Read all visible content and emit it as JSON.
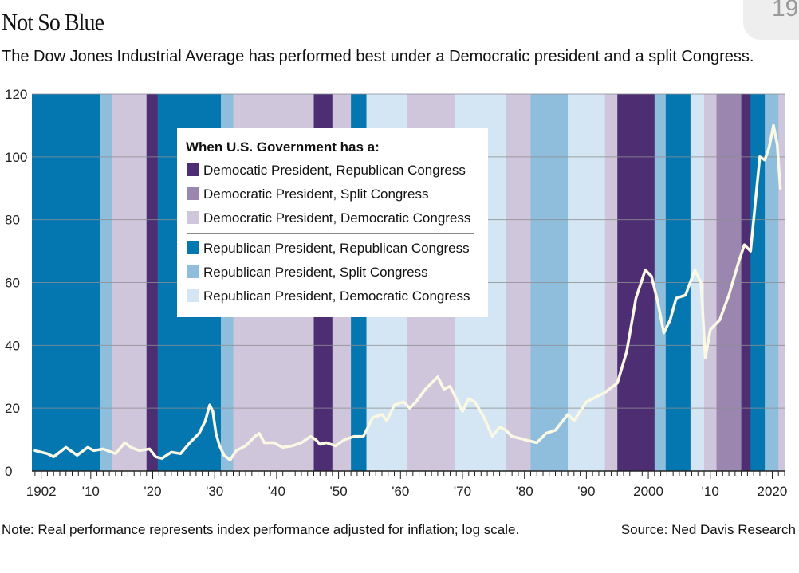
{
  "badge_text": "19",
  "chart_data": {
    "type": "line",
    "title": "Not So Blue",
    "subtitle": "The Dow Jones Industrial Average has performed best under a Democratic president and a split Congress.",
    "note": "Note: Real performance represents index performance adjusted for inflation; log scale.",
    "source": "Source: Ned Davis Research",
    "xlim": [
      1900.5,
      2022
    ],
    "ylim": [
      0,
      120
    ],
    "y_ticks": [
      0,
      20,
      40,
      60,
      80,
      100,
      120
    ],
    "x_ticks": [
      {
        "year": 1902,
        "label": "1902"
      },
      {
        "year": 1910,
        "label": "'10"
      },
      {
        "year": 1920,
        "label": "'20"
      },
      {
        "year": 1930,
        "label": "'30"
      },
      {
        "year": 1940,
        "label": "'40"
      },
      {
        "year": 1950,
        "label": "'50"
      },
      {
        "year": 1960,
        "label": "'60"
      },
      {
        "year": 1970,
        "label": "'70"
      },
      {
        "year": 1980,
        "label": "'80"
      },
      {
        "year": 1990,
        "label": "'90"
      },
      {
        "year": 2000,
        "label": "2000"
      },
      {
        "year": 2010,
        "label": "'10"
      },
      {
        "year": 2020,
        "label": "2020"
      }
    ],
    "grid": true,
    "legend": {
      "title": "When U.S. Government has a:",
      "placement": "top-left",
      "entries": [
        {
          "key": "DR",
          "label": "Democatic President, Republican Congress",
          "color": "#4e2e72"
        },
        {
          "key": "DS",
          "label": "Democratic President, Split Congress",
          "color": "#9a86ae"
        },
        {
          "key": "DD",
          "label": "Democratic President, Democratic Congress",
          "color": "#d0c6dc"
        },
        {
          "key": "RR",
          "label": "Republican President, Republican Congress",
          "color": "#0477b0"
        },
        {
          "key": "RS",
          "label": "Republican President, Split Congress",
          "color": "#8fbedd"
        },
        {
          "key": "RD",
          "label": "Republican President, Democratic Congress",
          "color": "#d4e6f3"
        }
      ]
    },
    "line_color": "#fbf8e4",
    "regimes": [
      {
        "start": 1900.5,
        "end": 1911.5,
        "type": "RR"
      },
      {
        "start": 1911.5,
        "end": 1913.5,
        "type": "RS"
      },
      {
        "start": 1913.5,
        "end": 1919.0,
        "type": "DD"
      },
      {
        "start": 1919.0,
        "end": 1920.8,
        "type": "DR"
      },
      {
        "start": 1920.8,
        "end": 1931.0,
        "type": "RR"
      },
      {
        "start": 1931.0,
        "end": 1933.0,
        "type": "RS"
      },
      {
        "start": 1933.0,
        "end": 1946.0,
        "type": "DD"
      },
      {
        "start": 1946.0,
        "end": 1949.0,
        "type": "DR"
      },
      {
        "start": 1949.0,
        "end": 1952.0,
        "type": "DD"
      },
      {
        "start": 1952.0,
        "end": 1954.5,
        "type": "RR"
      },
      {
        "start": 1954.5,
        "end": 1961.0,
        "type": "RD"
      },
      {
        "start": 1961.0,
        "end": 1968.8,
        "type": "DD"
      },
      {
        "start": 1968.8,
        "end": 1977.0,
        "type": "RD"
      },
      {
        "start": 1977.0,
        "end": 1981.0,
        "type": "DD"
      },
      {
        "start": 1981.0,
        "end": 1987.0,
        "type": "RS"
      },
      {
        "start": 1987.0,
        "end": 1993.0,
        "type": "RD"
      },
      {
        "start": 1993.0,
        "end": 1995.0,
        "type": "DD"
      },
      {
        "start": 1995.0,
        "end": 2001.0,
        "type": "DR"
      },
      {
        "start": 2001.0,
        "end": 2002.8,
        "type": "RS"
      },
      {
        "start": 2002.8,
        "end": 2006.8,
        "type": "RR"
      },
      {
        "start": 2006.8,
        "end": 2009.0,
        "type": "RD"
      },
      {
        "start": 2009.0,
        "end": 2011.0,
        "type": "DD"
      },
      {
        "start": 2011.0,
        "end": 2015.0,
        "type": "DS"
      },
      {
        "start": 2015.0,
        "end": 2016.5,
        "type": "DR"
      },
      {
        "start": 2016.5,
        "end": 2018.8,
        "type": "RR"
      },
      {
        "start": 2018.8,
        "end": 2021.0,
        "type": "RS"
      },
      {
        "start": 2021.0,
        "end": 2022.0,
        "type": "DD"
      }
    ],
    "series": [
      {
        "x": [
          1901,
          1903,
          1904,
          1906,
          1907.8,
          1909.5,
          1910.5,
          1912,
          1914,
          1915.5,
          1916.5,
          1917.8,
          1919.5,
          1920.5,
          1921.5,
          1923,
          1924.5,
          1926,
          1927.5,
          1928.5,
          1929.2,
          1929.7,
          1930.2,
          1930.8,
          1931.5,
          1932.5,
          1933.5,
          1935,
          1936.5,
          1937.2,
          1938,
          1939.5,
          1941,
          1942.5,
          1944,
          1945.5,
          1946.3,
          1947,
          1948,
          1949.5,
          1951,
          1952.5,
          1954,
          1955.5,
          1957,
          1957.8,
          1959,
          1960.5,
          1961.5,
          1962.5,
          1964,
          1966,
          1967,
          1968,
          1970,
          1971,
          1972,
          1973.5,
          1974.8,
          1976,
          1977,
          1978,
          1980,
          1982,
          1983.5,
          1985,
          1987,
          1988,
          1990,
          1991,
          1993,
          1995,
          1996.5,
          1998,
          1999.5,
          2000.5,
          2001.5,
          2002.5,
          2003.5,
          2004.5,
          2006,
          2007.5,
          2008.5,
          2009.2,
          2010,
          2011.5,
          2013,
          2014.5,
          2015.5,
          2016.5,
          2017.5,
          2018,
          2018.8,
          2019.5,
          2020.2,
          2020.8,
          2021.3
        ],
        "y": [
          6.5,
          5.5,
          4.5,
          7.5,
          5,
          7.5,
          6.5,
          7,
          5.5,
          9,
          7.5,
          6.5,
          7,
          4.5,
          4,
          6,
          5.5,
          9,
          12,
          16,
          21,
          19,
          12,
          8,
          5,
          3.5,
          6.5,
          8,
          11,
          12,
          9,
          9,
          7.5,
          8,
          9,
          11,
          10,
          8.5,
          9,
          8,
          10,
          11,
          11,
          17,
          18,
          16,
          21,
          22,
          20,
          22,
          26,
          30,
          26,
          27,
          19,
          23,
          22,
          17,
          11,
          14,
          13,
          11,
          10,
          9,
          12,
          13,
          18,
          16,
          22,
          23,
          25,
          28,
          38,
          55,
          64,
          62,
          54,
          44,
          48,
          55,
          56,
          64,
          60,
          36,
          45,
          48,
          56,
          66,
          72,
          70,
          90,
          100,
          99,
          103,
          110,
          104,
          90
        ]
      }
    ]
  }
}
